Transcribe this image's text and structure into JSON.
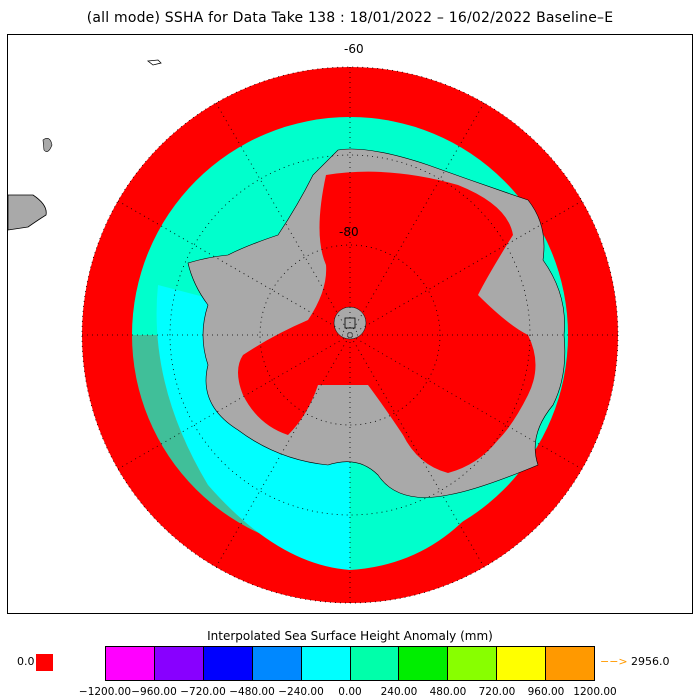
{
  "title": "(all mode) SSHA for Data Take 138 : 18/01/2022 – 16/02/2022 Baseline–E",
  "map": {
    "projection": "south-polar-stereographic",
    "lat_labels": [
      "-60",
      "-80"
    ],
    "colors": {
      "land": "#a9a9a9",
      "background": "#ffffff",
      "high_anomaly": "#ff0000",
      "ocean_near_zero": "#00ffcc",
      "ocean_negative": "#00ffff",
      "graticule": "#000000"
    }
  },
  "colorbar": {
    "title": "Interpolated Sea Surface Height Anomaly (mm)",
    "colors": [
      "#ff00ff",
      "#8800ff",
      "#0000ff",
      "#0088ff",
      "#00ffff",
      "#00ffaa",
      "#00ee00",
      "#88ff00",
      "#ffff00",
      "#ff9900"
    ],
    "ticks": [
      "−1200.00",
      "−960.00",
      "−720.00",
      "−480.00",
      "−240.00",
      "0.00",
      "240.00",
      "480.00",
      "720.00",
      "960.00",
      "1200.00"
    ],
    "zero_label": "0.0",
    "zero_color": "#ff0000",
    "overflow_arrow": "−−>",
    "overflow_value": "2956.0"
  }
}
